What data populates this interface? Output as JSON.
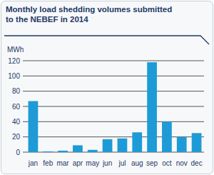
{
  "chart_data": {
    "type": "bar",
    "title": "Monthly load shedding volumes submitted to the NEBEF in 2014",
    "y_label": "MWh",
    "categories": [
      "jan",
      "feb",
      "mar",
      "apr",
      "may",
      "jun",
      "jul",
      "aug",
      "sep",
      "oct",
      "nov",
      "dec"
    ],
    "values": [
      67,
      1,
      2,
      9,
      3,
      17,
      18,
      26,
      118,
      40,
      20,
      25
    ],
    "color": "#1e9bd7",
    "ylim": [
      0,
      120
    ],
    "yticks": [
      0,
      20,
      40,
      60,
      80,
      100,
      120
    ],
    "grid": true
  }
}
